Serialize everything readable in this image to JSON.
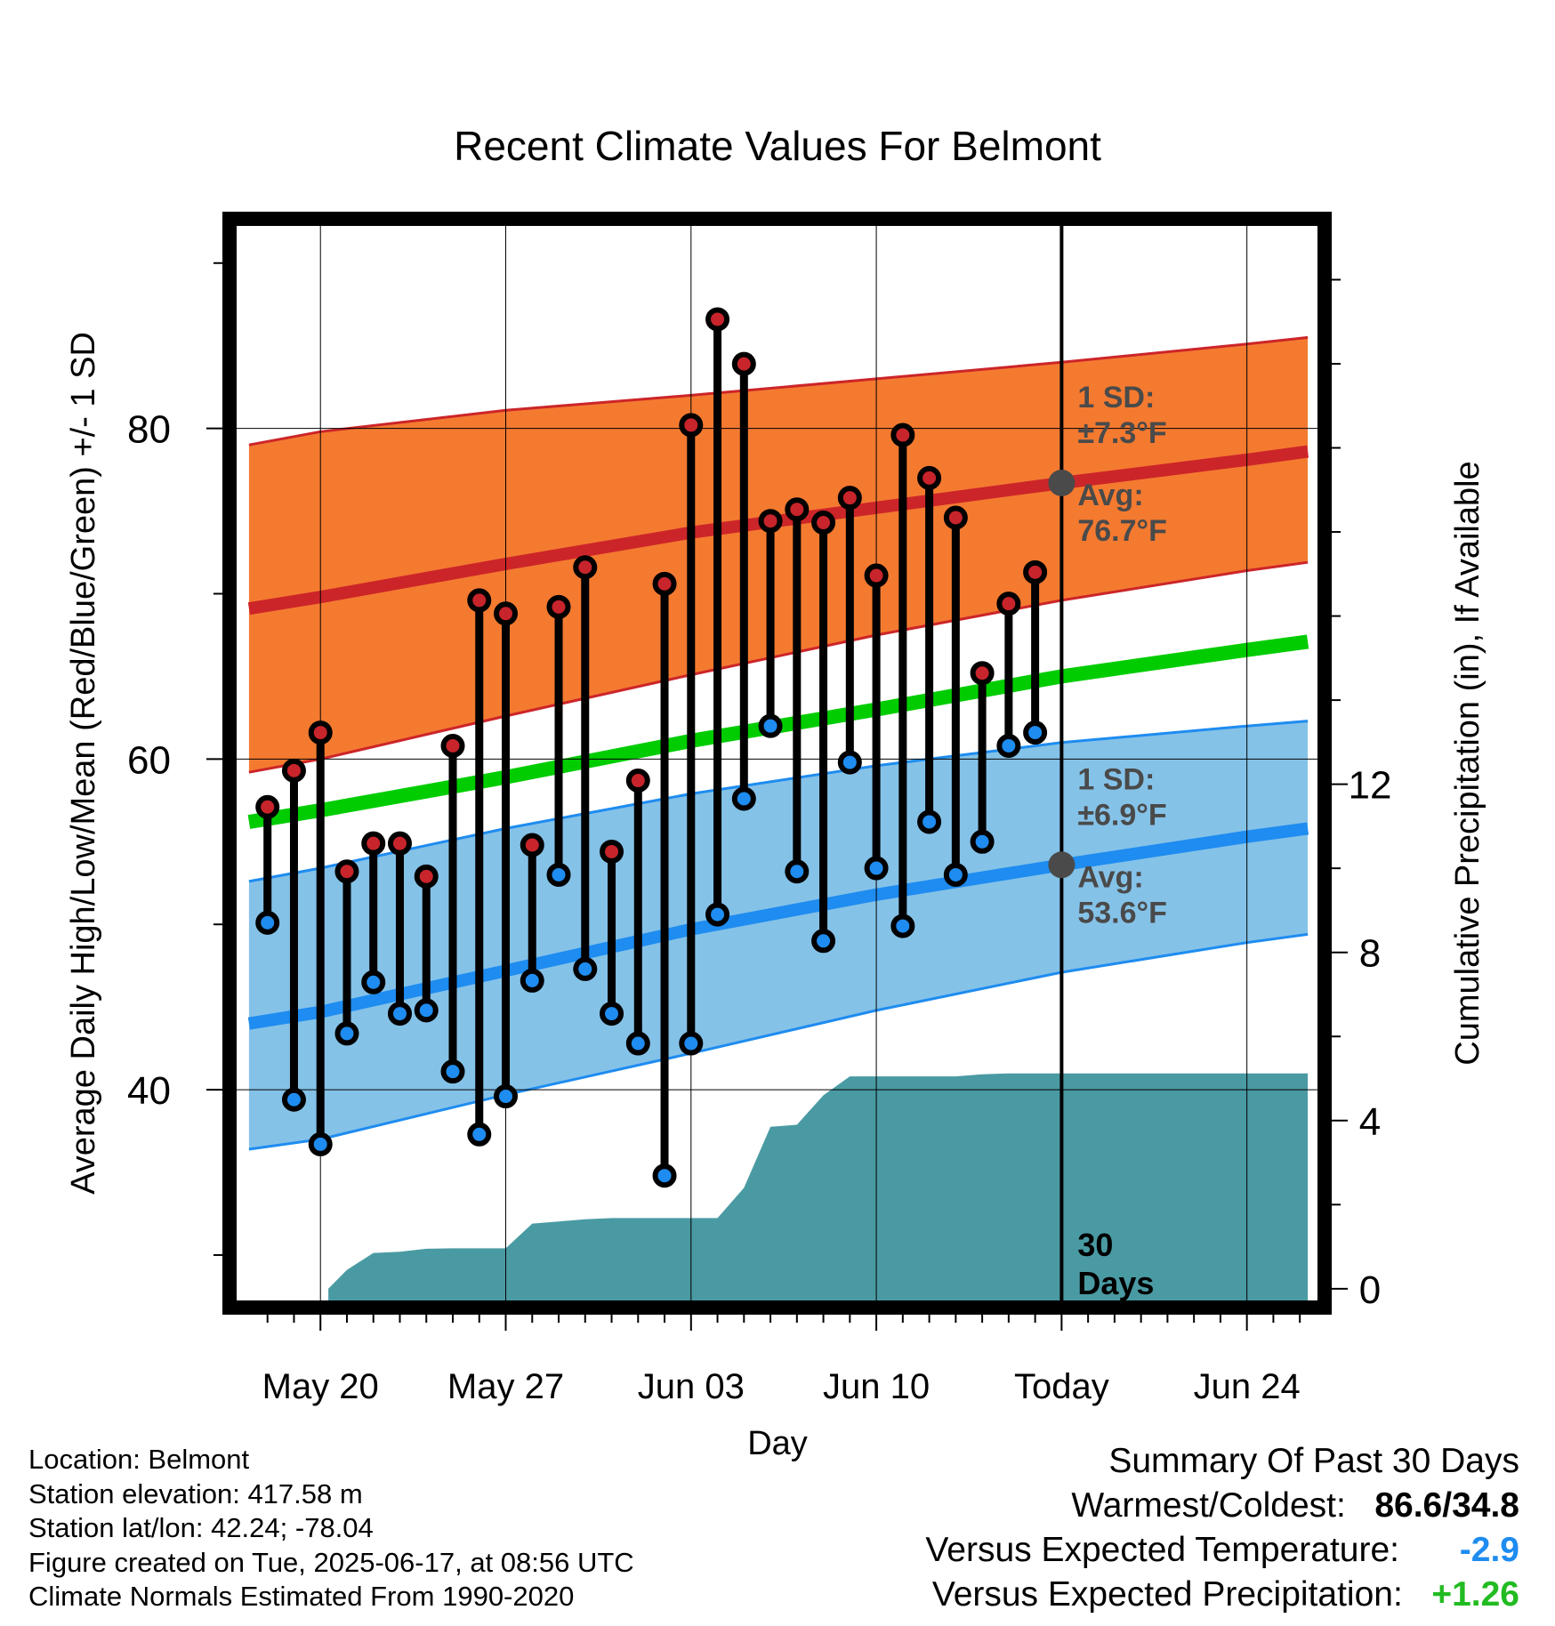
{
  "chart_data": {
    "type": "line",
    "title": "Recent Climate Values For Belmont",
    "xlabel": "Day",
    "ylabel": "Average Daily High/Low/Mean (Red/Blue/Green) +/- 1 SD",
    "y2label": "Cumulative Precipitation (in), If Available",
    "x_tick_labels": [
      "May 20",
      "May 27",
      "Jun 03",
      "Jun 10",
      "Today",
      "Jun 24"
    ],
    "x_tick_days": [
      0,
      7,
      14,
      21,
      28,
      35
    ],
    "xlim": [
      -3.2,
      37.7
    ],
    "ylim": [
      27.2,
      92.3
    ],
    "y_ticks": [
      40,
      60,
      80
    ],
    "y2lim": [
      -0.3,
      25.3
    ],
    "y2_ticks": [
      0,
      4,
      8,
      12
    ],
    "today_marker": {
      "label_line1": "30",
      "label_line2": "Days"
    },
    "normals": {
      "days": [
        -2.7,
        0,
        7,
        14,
        21,
        28,
        35,
        37.3
      ],
      "high_avg": [
        69.1,
        69.8,
        71.8,
        73.7,
        75.2,
        76.7,
        78.1,
        78.6
      ],
      "high_sd_upper": [
        79.0,
        79.8,
        81.1,
        82.0,
        83.0,
        84.0,
        85.1,
        85.5
      ],
      "high_sd_lower": [
        59.2,
        60.0,
        62.6,
        65.1,
        67.5,
        69.6,
        71.4,
        71.9
      ],
      "mean": [
        56.2,
        56.9,
        58.9,
        61.1,
        63.0,
        65.0,
        66.6,
        67.1
      ],
      "low_avg": [
        44.0,
        44.7,
        47.2,
        49.7,
        51.8,
        53.6,
        55.3,
        55.8
      ],
      "low_sd_upper": [
        52.6,
        53.4,
        55.8,
        57.9,
        59.6,
        61.0,
        62.0,
        62.3
      ],
      "low_sd_lower": [
        36.4,
        37.0,
        39.7,
        42.2,
        44.8,
        47.1,
        48.9,
        49.4
      ]
    },
    "today_normals": {
      "high_sd_label": "1 SD:",
      "high_sd_value": "±7.3°F",
      "high_avg_label": "Avg:",
      "high_avg_value": "76.7°F",
      "low_sd_label": "1 SD:",
      "low_sd_value": "±6.9°F",
      "low_avg_label": "Avg:",
      "low_avg_value": "53.6°F"
    },
    "series": [
      {
        "name": "High",
        "x": [
          -2,
          -1,
          0,
          1,
          2,
          3,
          4,
          5,
          6,
          7,
          8,
          9,
          10,
          11,
          12,
          13,
          14,
          15,
          16,
          17,
          18,
          19,
          20,
          21,
          22,
          23,
          24,
          25,
          26,
          27
        ],
        "values": [
          57.1,
          59.3,
          61.6,
          53.2,
          54.9,
          54.9,
          52.9,
          60.8,
          69.6,
          68.8,
          54.8,
          69.2,
          71.6,
          54.4,
          58.7,
          70.6,
          80.2,
          86.6,
          83.9,
          74.4,
          75.1,
          74.3,
          75.8,
          71.1,
          79.6,
          77.0,
          74.6,
          65.2,
          69.4,
          71.3
        ]
      },
      {
        "name": "Low",
        "x": [
          -2,
          -1,
          0,
          1,
          2,
          3,
          4,
          5,
          6,
          7,
          8,
          9,
          10,
          11,
          12,
          13,
          14,
          15,
          16,
          17,
          18,
          19,
          20,
          21,
          22,
          23,
          24,
          25,
          26,
          27
        ],
        "values": [
          50.1,
          39.4,
          36.7,
          43.4,
          46.5,
          44.6,
          44.8,
          41.1,
          37.3,
          39.6,
          46.6,
          53.0,
          47.3,
          44.6,
          42.8,
          34.8,
          42.8,
          50.6,
          57.6,
          62.0,
          53.2,
          49.0,
          59.8,
          53.4,
          49.9,
          56.2,
          53.0,
          55.0,
          60.8,
          61.6
        ]
      },
      {
        "name": "Cumulative Precipitation",
        "axis": "y2",
        "x": [
          0.3,
          1.0,
          2.0,
          3.0,
          4.0,
          5.0,
          6.0,
          7.0,
          8.0,
          9.0,
          10.0,
          11.0,
          12.0,
          13.0,
          14.0,
          15.0,
          16.0,
          17.0,
          18.0,
          19.0,
          20.0,
          21.0,
          22.0,
          23.0,
          24.0,
          25.0,
          26.0,
          27.0,
          28.0,
          37.3
        ],
        "values": [
          0.0,
          0.45,
          0.85,
          0.88,
          0.95,
          0.96,
          0.96,
          0.96,
          1.55,
          1.6,
          1.65,
          1.68,
          1.68,
          1.68,
          1.68,
          1.68,
          2.4,
          3.85,
          3.9,
          4.6,
          5.05,
          5.05,
          5.05,
          5.05,
          5.05,
          5.1,
          5.12,
          5.12,
          5.12,
          5.12
        ]
      }
    ],
    "colors": {
      "high_band": "#f47a30",
      "high_line": "#cc2529",
      "mean_line": "#00cc00",
      "low_band": "#85c2e8",
      "low_line": "#1e8cf0",
      "precip": "#4a9aa3",
      "high_dot": "#c8242b",
      "low_dot": "#1e8cf0",
      "label_gray": "#4a4a4a"
    }
  },
  "location_info": {
    "location": "Location: Belmont",
    "elevation": "Station elevation: 417.58 m",
    "latlon": "Station lat/lon: 42.24; -78.04",
    "created": "Figure created on Tue, 2025-06-17, at 08:56 UTC",
    "normals": "Climate Normals Estimated From 1990-2020"
  },
  "summary": {
    "title": "Summary Of Past 30 Days",
    "warmest_label": "Warmest/Coldest:",
    "warmest_value": "86.6/34.8",
    "temp_label": "Versus Expected Temperature:",
    "temp_value": "-2.9",
    "temp_color": "#1e8cf0",
    "precip_label": "Versus Expected Precipitation:",
    "precip_value": "+1.26",
    "precip_color": "#22bb22"
  }
}
